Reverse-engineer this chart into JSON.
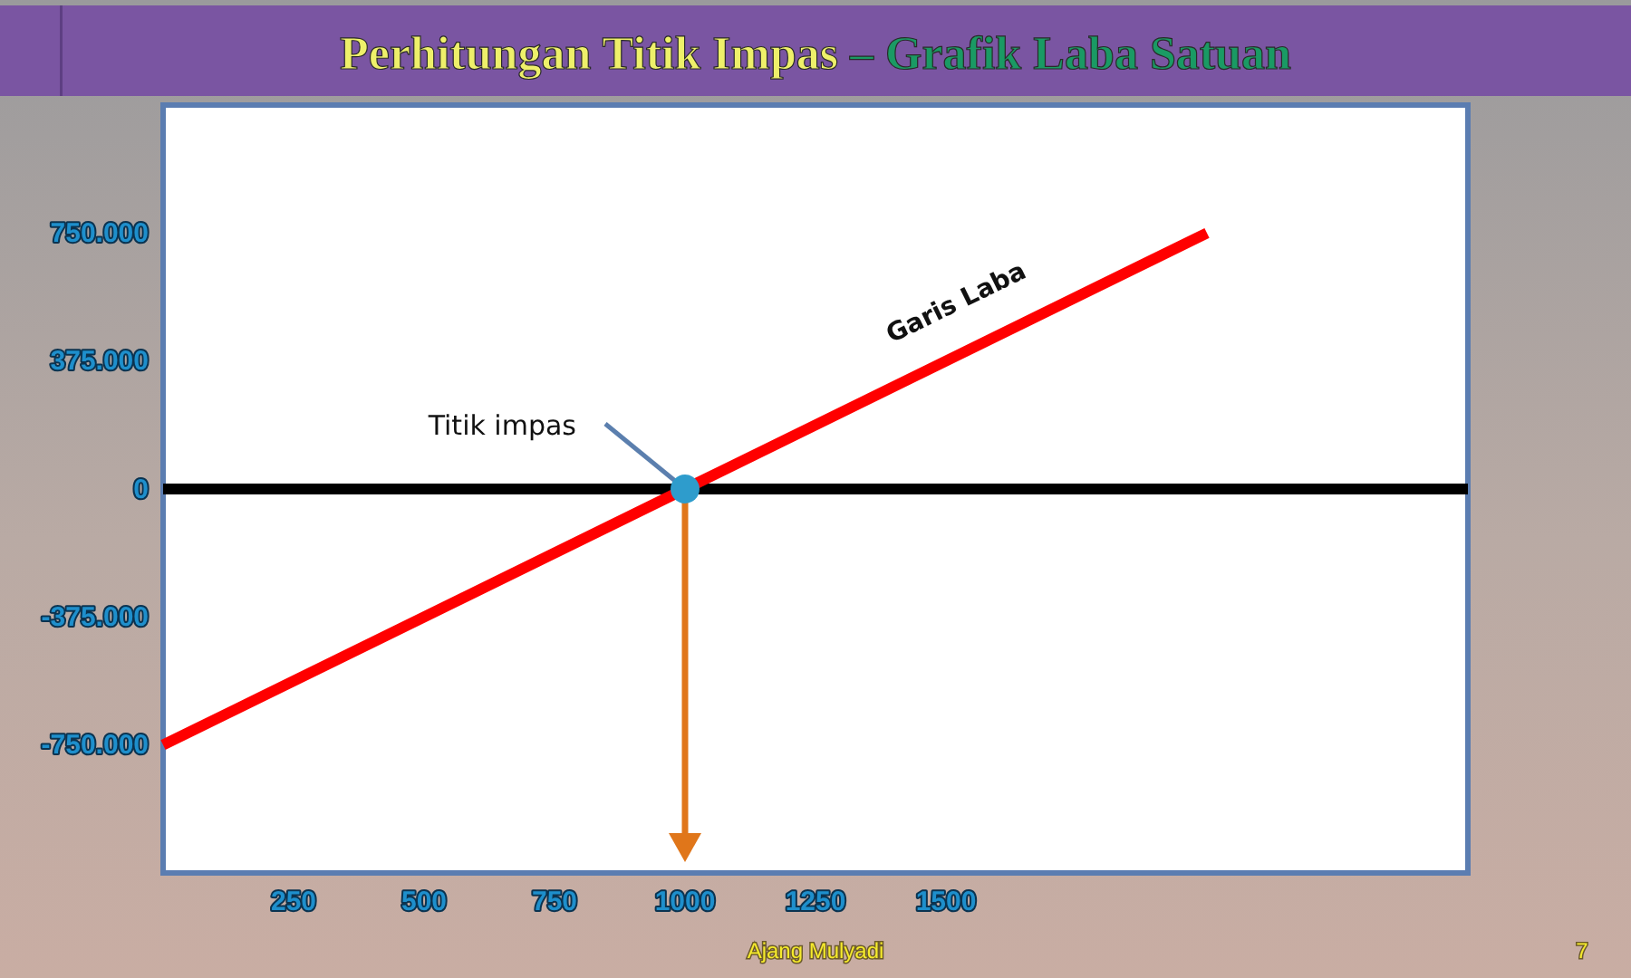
{
  "chart_data": {
    "type": "line",
    "title": "Perhitungan Titik Impas – Grafik Laba Satuan",
    "series": [
      {
        "name": "Garis Laba",
        "color": "#ff0000",
        "x": [
          0,
          1000,
          2000
        ],
        "values": [
          -750000,
          0,
          750000
        ]
      },
      {
        "type": "scatter",
        "color": "#2e9ccc",
        "marker": "circle",
        "x": [
          1000
        ],
        "values": [
          0
        ]
      }
    ],
    "xlim": [
      0,
      2500
    ],
    "xticks": [
      250,
      500,
      750,
      1000,
      1250,
      1500
    ],
    "ylim": [
      -1125000,
      1125000
    ],
    "yticks": [
      {
        "value": -750000,
        "label": "-750.000"
      },
      {
        "value": -375000,
        "label": "-375.000"
      },
      0,
      {
        "value": 375000,
        "label": "375.000"
      },
      {
        "value": 750000,
        "label": "750.000"
      }
    ],
    "ref_lines": [
      {
        "axis": "y",
        "value": 0,
        "color": "#000000"
      }
    ],
    "annotations": [
      {
        "text": "Titik impas",
        "x": 1000,
        "y": 0
      },
      "Ajang Mulyadi",
      "7"
    ]
  }
}
